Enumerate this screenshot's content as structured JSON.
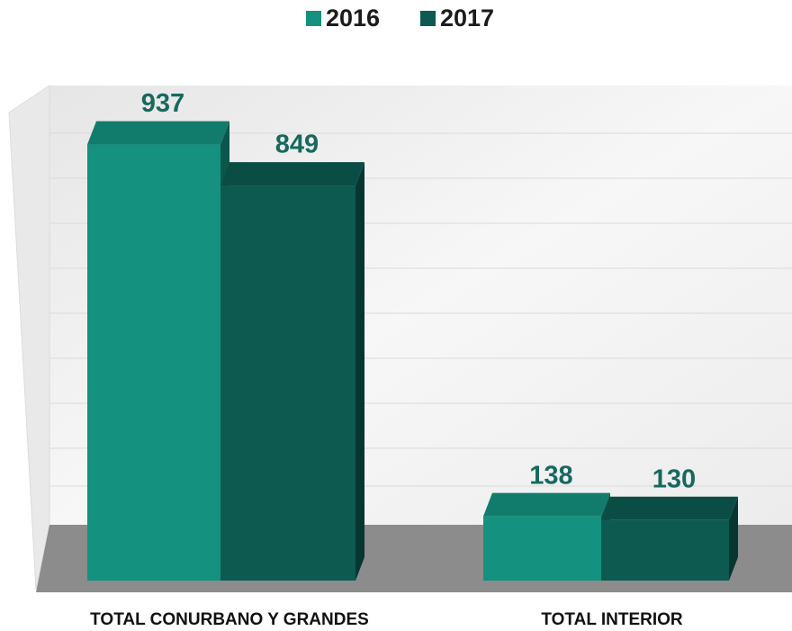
{
  "chart_data": {
    "type": "bar3d",
    "categories": [
      "TOTAL CONURBANO Y GRANDES",
      "TOTAL INTERIOR"
    ],
    "series": [
      {
        "name": "2016",
        "color": "#14917f",
        "values": [
          937,
          138
        ]
      },
      {
        "name": "2017",
        "color": "#0c5a50",
        "values": [
          849,
          130
        ]
      }
    ],
    "legend": "top"
  }
}
